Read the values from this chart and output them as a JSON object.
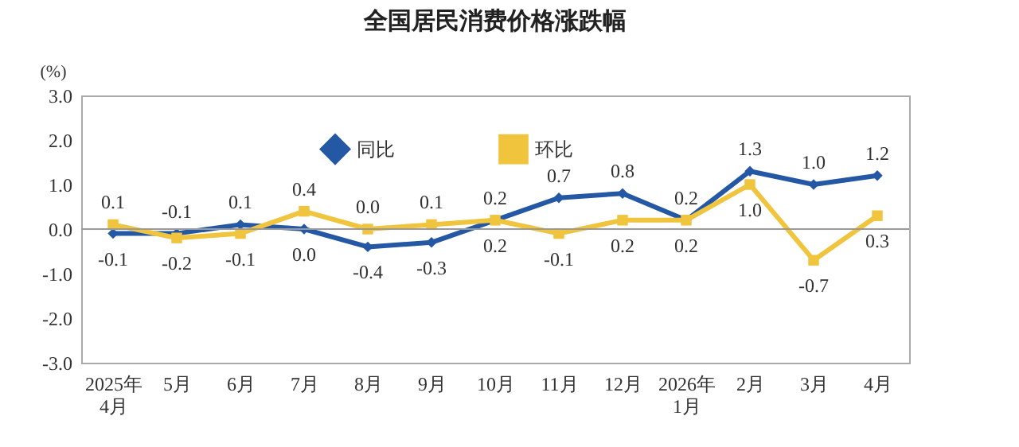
{
  "chart_data": {
    "type": "line",
    "title": "全国居民消费价格涨跌幅",
    "ylabel": "(%)",
    "categories": [
      "2025年\n4月",
      "5月",
      "6月",
      "7月",
      "8月",
      "9月",
      "10月",
      "11月",
      "12月",
      "2026年\n1月",
      "2月",
      "3月",
      "4月"
    ],
    "series": [
      {
        "name": "同比",
        "color": "#2458a4",
        "marker": "diamond",
        "values": [
          -0.1,
          -0.1,
          0.1,
          0.0,
          -0.4,
          -0.3,
          0.2,
          0.7,
          0.8,
          0.2,
          1.3,
          1.0,
          1.2
        ],
        "value_labels": [
          "-0.1",
          "-0.1",
          "0.1",
          "0.0",
          "-0.4",
          "-0.3",
          "0.2",
          "0.7",
          "0.8",
          "0.2",
          "1.3",
          "1.0",
          "1.2"
        ]
      },
      {
        "name": "环比",
        "color": "#f0c43c",
        "marker": "square",
        "values": [
          0.1,
          -0.2,
          -0.1,
          0.4,
          0.0,
          0.1,
          0.2,
          -0.1,
          0.2,
          0.2,
          1.0,
          -0.7,
          0.3
        ],
        "value_labels": [
          "0.1",
          "-0.2",
          "-0.1",
          "0.4",
          "0.0",
          "0.1",
          "0.2",
          "-0.1",
          "0.2",
          "0.2",
          "1.0",
          "-0.7",
          "0.3"
        ]
      }
    ],
    "ylim": [
      -3,
      3
    ],
    "yticks": [
      {
        "value": -3,
        "label": "-3.0"
      },
      {
        "value": -2,
        "label": "-2.0"
      },
      {
        "value": -1,
        "label": "-1.0"
      },
      {
        "value": 0,
        "label": "0.0"
      },
      {
        "value": 1,
        "label": "1.0"
      },
      {
        "value": 2,
        "label": "2.0"
      },
      {
        "value": 3,
        "label": "3.0"
      }
    ],
    "ref_lines": [
      {
        "axis": "y",
        "value": 0
      }
    ],
    "data_labels": true,
    "grid": false,
    "legend": "top",
    "line_style": "solid"
  }
}
